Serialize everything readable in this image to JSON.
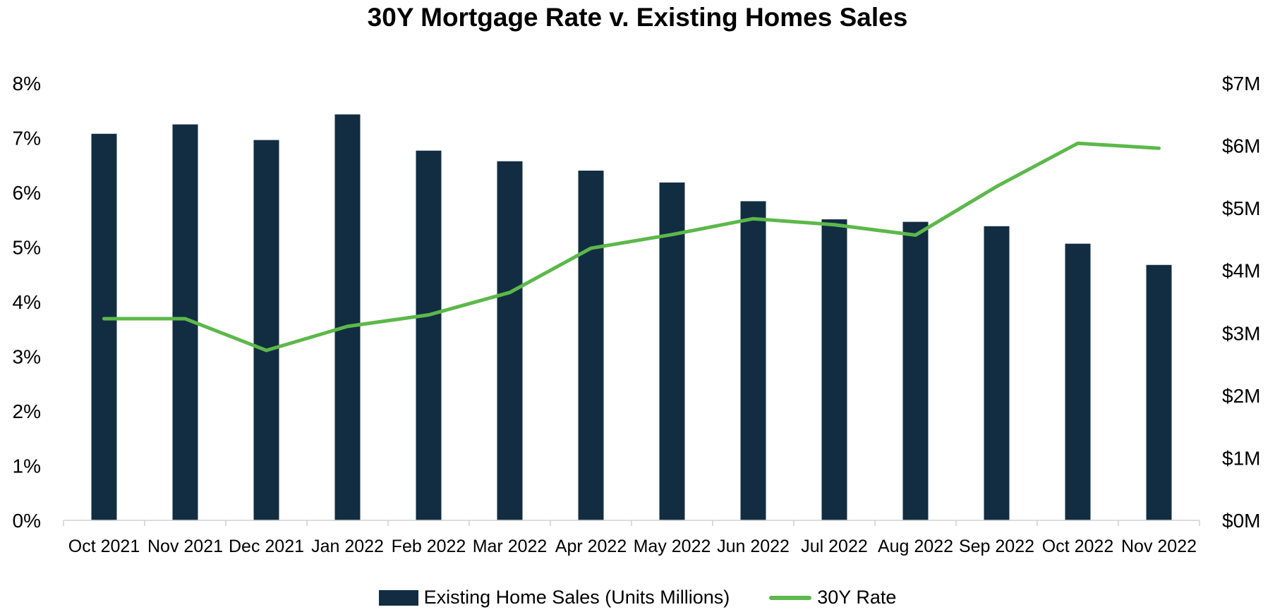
{
  "chart_data": {
    "type": "bar",
    "title": "30Y Mortgage Rate v. Existing Homes Sales",
    "categories": [
      "Oct 2021",
      "Nov 2021",
      "Dec 2021",
      "Jan 2022",
      "Feb 2022",
      "Mar 2022",
      "Apr 2022",
      "May 2022",
      "Jun 2022",
      "Jul 2022",
      "Aug 2022",
      "Sep 2022",
      "Oct 2022",
      "Nov 2022"
    ],
    "series": [
      {
        "name": "Existing Home Sales (Units Millions)",
        "type": "bar",
        "axis": "right",
        "color": "#122d42",
        "values": [
          6.19,
          6.34,
          6.09,
          6.5,
          5.92,
          5.75,
          5.6,
          5.41,
          5.11,
          4.82,
          4.78,
          4.71,
          4.43,
          4.09
        ]
      },
      {
        "name": "30Y Rate",
        "type": "line",
        "axis": "left",
        "color": "#5cb84a",
        "values": [
          3.69,
          3.69,
          3.11,
          3.55,
          3.76,
          4.17,
          4.98,
          5.23,
          5.52,
          5.41,
          5.22,
          6.11,
          6.9,
          6.81
        ]
      }
    ],
    "y_left": {
      "ticks": [
        "0%",
        "1%",
        "2%",
        "3%",
        "4%",
        "5%",
        "6%",
        "7%",
        "8%"
      ],
      "ylim": [
        0,
        8
      ]
    },
    "y_right": {
      "ticks": [
        "$0M",
        "$1M",
        "$2M",
        "$3M",
        "$4M",
        "$5M",
        "$6M",
        "$7M"
      ],
      "ylim": [
        0,
        7
      ]
    },
    "grid": false,
    "legend_position": "bottom"
  }
}
